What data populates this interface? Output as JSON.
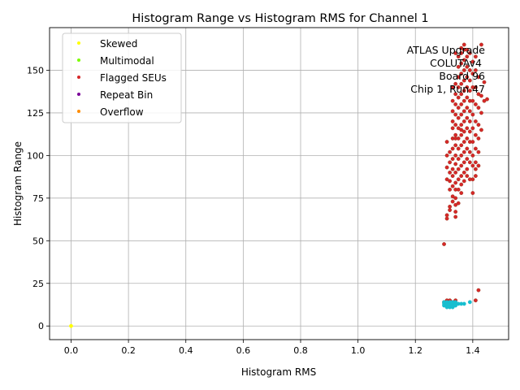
{
  "chart_data": {
    "type": "scatter",
    "title": "Histogram Range vs Histogram RMS for Channel 1",
    "xlabel": "Histogram RMS",
    "ylabel": "Histogram Range",
    "xlim": [
      -0.075,
      1.525
    ],
    "ylim": [
      -8,
      175
    ],
    "x_ticks": [
      0.0,
      0.2,
      0.4,
      0.6,
      0.8,
      1.0,
      1.2,
      1.4
    ],
    "x_tick_labels": [
      "0.0",
      "0.2",
      "0.4",
      "0.6",
      "0.8",
      "1.0",
      "1.2",
      "1.4"
    ],
    "y_ticks": [
      0,
      25,
      50,
      75,
      100,
      125,
      150
    ],
    "y_tick_labels": [
      "0",
      "25",
      "50",
      "75",
      "100",
      "125",
      "150"
    ],
    "grid": true,
    "legend_position": "top-left",
    "annotation_lines": [
      "ATLAS Upgrade",
      "COLUTAv4",
      "Board 96",
      "Chip 1, Run 47"
    ],
    "series": [
      {
        "name": "Skewed",
        "color": "#ffff00",
        "points": [
          [
            0.0,
            0.0
          ]
        ]
      },
      {
        "name": "Multimodal",
        "color": "#7cfc00",
        "points": []
      },
      {
        "name": "Flagged SEUs",
        "color": "#d62728",
        "points": [
          [
            1.3,
            48
          ],
          [
            1.31,
            63
          ],
          [
            1.31,
            65
          ],
          [
            1.32,
            68
          ],
          [
            1.32,
            70
          ],
          [
            1.33,
            73
          ],
          [
            1.33,
            76
          ],
          [
            1.34,
            64
          ],
          [
            1.34,
            67
          ],
          [
            1.34,
            71
          ],
          [
            1.32,
            80
          ],
          [
            1.32,
            85
          ],
          [
            1.31,
            86
          ],
          [
            1.33,
            88
          ],
          [
            1.32,
            90
          ],
          [
            1.31,
            93
          ],
          [
            1.32,
            96
          ],
          [
            1.31,
            100
          ],
          [
            1.32,
            102
          ],
          [
            1.31,
            108
          ],
          [
            1.33,
            92
          ],
          [
            1.33,
            98
          ],
          [
            1.33,
            104
          ],
          [
            1.33,
            110
          ],
          [
            1.33,
            116
          ],
          [
            1.33,
            120
          ],
          [
            1.33,
            126
          ],
          [
            1.33,
            132
          ],
          [
            1.34,
            80
          ],
          [
            1.34,
            84
          ],
          [
            1.34,
            90
          ],
          [
            1.34,
            95
          ],
          [
            1.34,
            100
          ],
          [
            1.34,
            106
          ],
          [
            1.34,
            112
          ],
          [
            1.34,
            118
          ],
          [
            1.34,
            124
          ],
          [
            1.34,
            130
          ],
          [
            1.34,
            136
          ],
          [
            1.34,
            142
          ],
          [
            1.35,
            86
          ],
          [
            1.35,
            92
          ],
          [
            1.35,
            98
          ],
          [
            1.35,
            104
          ],
          [
            1.35,
            110
          ],
          [
            1.35,
            116
          ],
          [
            1.35,
            122
          ],
          [
            1.35,
            128
          ],
          [
            1.35,
            134
          ],
          [
            1.35,
            140
          ],
          [
            1.35,
            146
          ],
          [
            1.35,
            152
          ],
          [
            1.36,
            88
          ],
          [
            1.36,
            94
          ],
          [
            1.36,
            100
          ],
          [
            1.36,
            106
          ],
          [
            1.36,
            112
          ],
          [
            1.36,
            118
          ],
          [
            1.36,
            124
          ],
          [
            1.36,
            130
          ],
          [
            1.36,
            136
          ],
          [
            1.36,
            142
          ],
          [
            1.36,
            148
          ],
          [
            1.36,
            154
          ],
          [
            1.36,
            160
          ],
          [
            1.37,
            90
          ],
          [
            1.37,
            96
          ],
          [
            1.37,
            102
          ],
          [
            1.37,
            108
          ],
          [
            1.37,
            114
          ],
          [
            1.37,
            120
          ],
          [
            1.37,
            126
          ],
          [
            1.37,
            132
          ],
          [
            1.37,
            138
          ],
          [
            1.37,
            144
          ],
          [
            1.37,
            150
          ],
          [
            1.37,
            156
          ],
          [
            1.37,
            162
          ],
          [
            1.38,
            92
          ],
          [
            1.38,
            98
          ],
          [
            1.38,
            104
          ],
          [
            1.38,
            110
          ],
          [
            1.38,
            116
          ],
          [
            1.38,
            122
          ],
          [
            1.38,
            128
          ],
          [
            1.38,
            134
          ],
          [
            1.38,
            140
          ],
          [
            1.38,
            146
          ],
          [
            1.38,
            152
          ],
          [
            1.38,
            158
          ],
          [
            1.39,
            96
          ],
          [
            1.39,
            102
          ],
          [
            1.39,
            108
          ],
          [
            1.39,
            114
          ],
          [
            1.39,
            120
          ],
          [
            1.39,
            126
          ],
          [
            1.39,
            132
          ],
          [
            1.39,
            138
          ],
          [
            1.39,
            144
          ],
          [
            1.39,
            150
          ],
          [
            1.4,
            78
          ],
          [
            1.4,
            86
          ],
          [
            1.4,
            94
          ],
          [
            1.4,
            100
          ],
          [
            1.4,
            108
          ],
          [
            1.4,
            116
          ],
          [
            1.4,
            124
          ],
          [
            1.4,
            132
          ],
          [
            1.4,
            140
          ],
          [
            1.4,
            148
          ],
          [
            1.41,
            88
          ],
          [
            1.41,
            96
          ],
          [
            1.41,
            104
          ],
          [
            1.41,
            112
          ],
          [
            1.41,
            120
          ],
          [
            1.41,
            130
          ],
          [
            1.41,
            140
          ],
          [
            1.41,
            150
          ],
          [
            1.42,
            102
          ],
          [
            1.42,
            110
          ],
          [
            1.42,
            118
          ],
          [
            1.42,
            128
          ],
          [
            1.42,
            136
          ],
          [
            1.42,
            146
          ],
          [
            1.43,
            115
          ],
          [
            1.43,
            125
          ],
          [
            1.43,
            135
          ],
          [
            1.43,
            165
          ],
          [
            1.44,
            132
          ],
          [
            1.44,
            143
          ],
          [
            1.45,
            133
          ],
          [
            1.41,
            158
          ],
          [
            1.37,
            165
          ],
          [
            1.36,
            163
          ],
          [
            1.34,
            160
          ],
          [
            1.33,
            140
          ],
          [
            1.35,
            158
          ],
          [
            1.38,
            162
          ],
          [
            1.39,
            160
          ],
          [
            1.4,
            155
          ],
          [
            1.34,
            75
          ],
          [
            1.35,
            80
          ],
          [
            1.33,
            82
          ],
          [
            1.36,
            83
          ],
          [
            1.39,
            86
          ],
          [
            1.41,
            92
          ],
          [
            1.42,
            94
          ],
          [
            1.38,
            88
          ],
          [
            1.37,
            85
          ],
          [
            1.36,
            78
          ],
          [
            1.31,
            15
          ],
          [
            1.32,
            15
          ],
          [
            1.34,
            15
          ],
          [
            1.41,
            15
          ],
          [
            1.42,
            21
          ],
          [
            1.3,
            14
          ],
          [
            1.33,
            14
          ],
          [
            1.35,
            72
          ],
          [
            1.34,
            110
          ],
          [
            1.36,
            115
          ]
        ]
      },
      {
        "name": "Repeat Bin",
        "color": "#7b0099",
        "points": []
      },
      {
        "name": "Overflow",
        "color": "#ff8c00",
        "points": []
      },
      {
        "name": "",
        "color": "#17becf",
        "show_in_legend": false,
        "points": [
          [
            1.3,
            13
          ],
          [
            1.3,
            12
          ],
          [
            1.31,
            13
          ],
          [
            1.31,
            12
          ],
          [
            1.31,
            14
          ],
          [
            1.32,
            13
          ],
          [
            1.32,
            12
          ],
          [
            1.32,
            14
          ],
          [
            1.33,
            13
          ],
          [
            1.33,
            12
          ],
          [
            1.33,
            14
          ],
          [
            1.34,
            13
          ],
          [
            1.34,
            12
          ],
          [
            1.35,
            13
          ],
          [
            1.36,
            13
          ],
          [
            1.37,
            13
          ],
          [
            1.39,
            14
          ],
          [
            1.31,
            11
          ],
          [
            1.32,
            11
          ],
          [
            1.33,
            11
          ],
          [
            1.34,
            14
          ],
          [
            1.3,
            14
          ],
          [
            1.315,
            12.5
          ],
          [
            1.325,
            13.5
          ],
          [
            1.335,
            12.5
          ]
        ]
      }
    ]
  }
}
